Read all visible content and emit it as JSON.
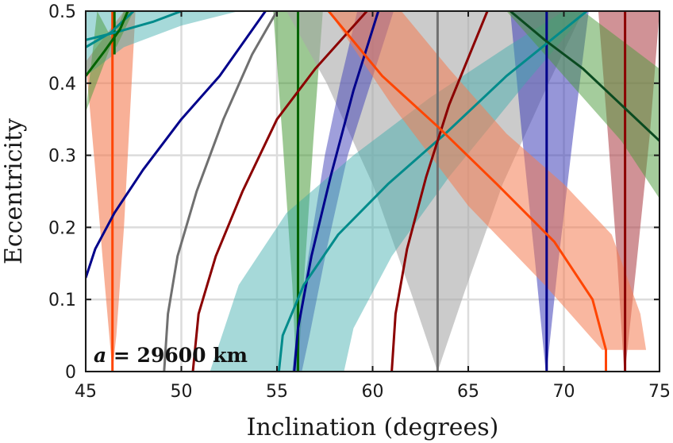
{
  "chart_data": {
    "type": "line",
    "xlabel": "Inclination (degrees)",
    "ylabel": "Eccentricity",
    "xlim": [
      45,
      75
    ],
    "ylim": [
      0,
      0.5
    ],
    "xticks": [
      45,
      50,
      55,
      60,
      65,
      70,
      75
    ],
    "yticks": [
      0,
      0.1,
      0.2,
      0.3,
      0.4,
      0.5
    ],
    "xtick_labels": [
      "45",
      "50",
      "55",
      "60",
      "65",
      "70",
      "75"
    ],
    "ytick_labels": [
      "0",
      "0.1",
      "0.2",
      "0.3",
      "0.4",
      "0.5"
    ],
    "grid": true,
    "annotation": {
      "text": "a = 29600 km",
      "var": "a",
      "rest": " = 29600 km",
      "position": "bottom-left"
    },
    "bands": [
      {
        "name": "band-red-i46",
        "color": "#f47c52",
        "opacity": 0.6,
        "left": [
          [
            45.0,
            0.43
          ],
          [
            45.5,
            0.28
          ],
          [
            46.0,
            0.12
          ],
          [
            46.4,
            0.0
          ]
        ],
        "right": [
          [
            47.0,
            0.5
          ],
          [
            47.6,
            0.5
          ],
          [
            47.0,
            0.2
          ],
          [
            46.6,
            0.05
          ],
          [
            46.4,
            0.0
          ]
        ]
      },
      {
        "name": "band-green-i56",
        "color": "#4a9a3a",
        "opacity": 0.55,
        "left": [
          [
            54.8,
            0.5
          ],
          [
            55.3,
            0.32
          ],
          [
            55.8,
            0.12
          ],
          [
            56.0,
            0.0
          ]
        ],
        "right": [
          [
            57.4,
            0.5
          ],
          [
            56.9,
            0.32
          ],
          [
            56.4,
            0.12
          ],
          [
            56.1,
            0.0
          ]
        ]
      },
      {
        "name": "band-gray-i63",
        "color": "#a8a8a8",
        "opacity": 0.6,
        "left": [
          [
            55.5,
            0.5
          ],
          [
            57.6,
            0.4
          ],
          [
            60.0,
            0.26
          ],
          [
            62.0,
            0.11
          ],
          [
            63.4,
            0.0
          ]
        ],
        "right": [
          [
            71.0,
            0.5
          ],
          [
            69.2,
            0.4
          ],
          [
            66.8,
            0.26
          ],
          [
            64.8,
            0.11
          ],
          [
            63.4,
            0.0
          ]
        ]
      },
      {
        "name": "band-blue-i69",
        "color": "#4040b8",
        "opacity": 0.55,
        "left": [
          [
            67.2,
            0.5
          ],
          [
            67.8,
            0.33
          ],
          [
            68.5,
            0.15
          ],
          [
            69.05,
            0.0
          ]
        ],
        "right": [
          [
            71.3,
            0.5
          ],
          [
            70.5,
            0.33
          ],
          [
            69.7,
            0.15
          ],
          [
            69.1,
            0.0
          ]
        ]
      },
      {
        "name": "band-maroon-i73",
        "color": "#b04a50",
        "opacity": 0.6,
        "left": [
          [
            71.8,
            0.5
          ],
          [
            72.3,
            0.33
          ],
          [
            72.8,
            0.15
          ],
          [
            73.15,
            0.0
          ]
        ],
        "right": [
          [
            75.0,
            0.5
          ],
          [
            74.5,
            0.33
          ],
          [
            73.8,
            0.15
          ],
          [
            73.2,
            0.0
          ]
        ]
      },
      {
        "name": "band-blue-i57",
        "color": "#4040b8",
        "opacity": 0.5,
        "left": [
          [
            55.8,
            0.0
          ],
          [
            56.0,
            0.05
          ],
          [
            56.7,
            0.17
          ],
          [
            57.5,
            0.3
          ],
          [
            58.3,
            0.4
          ],
          [
            59.2,
            0.5
          ]
        ],
        "right": [
          [
            56.3,
            0.0
          ],
          [
            56.7,
            0.05
          ],
          [
            57.6,
            0.17
          ],
          [
            58.7,
            0.3
          ],
          [
            59.9,
            0.4
          ],
          [
            61.1,
            0.5
          ]
        ]
      },
      {
        "name": "band-teal-i55",
        "color": "#3aaaaa",
        "opacity": 0.45,
        "left": [
          [
            51.5,
            0.0
          ],
          [
            53.0,
            0.12
          ],
          [
            55.5,
            0.22
          ],
          [
            59.0,
            0.3
          ],
          [
            63.0,
            0.38
          ],
          [
            67.0,
            0.45
          ],
          [
            70.0,
            0.5
          ]
        ],
        "right": [
          [
            58.5,
            0.0
          ],
          [
            59.0,
            0.06
          ],
          [
            61.0,
            0.16
          ],
          [
            64.0,
            0.27
          ],
          [
            68.0,
            0.4
          ],
          [
            71.2,
            0.5
          ]
        ]
      },
      {
        "name": "band-teal-topleft",
        "color": "#3aaaaa",
        "opacity": 0.45,
        "left": [
          [
            45.0,
            0.41
          ],
          [
            47.0,
            0.45
          ],
          [
            50.0,
            0.48
          ],
          [
            53.0,
            0.5
          ]
        ],
        "right": [
          [
            45.0,
            0.5
          ],
          [
            55.0,
            0.5
          ]
        ]
      },
      {
        "name": "band-red-diagonal",
        "color": "#f47c52",
        "opacity": 0.55,
        "left": [
          [
            57.7,
            0.5
          ],
          [
            61.0,
            0.37
          ],
          [
            65.0,
            0.23
          ],
          [
            69.0,
            0.12
          ],
          [
            72.0,
            0.03
          ],
          [
            73.0,
            0.03
          ]
        ],
        "right": [
          [
            61.5,
            0.5
          ],
          [
            64.0,
            0.42
          ],
          [
            67.0,
            0.33
          ],
          [
            70.0,
            0.26
          ],
          [
            72.5,
            0.19
          ],
          [
            74.0,
            0.08
          ],
          [
            74.3,
            0.03
          ]
        ]
      },
      {
        "name": "band-green-diagonal",
        "color": "#4a9a3a",
        "opacity": 0.5,
        "left": [
          [
            65.5,
            0.5
          ],
          [
            67.0,
            0.5
          ],
          [
            70.0,
            0.41
          ],
          [
            73.0,
            0.32
          ],
          [
            75.0,
            0.24
          ]
        ],
        "right": [
          [
            68.5,
            0.5
          ],
          [
            71.0,
            0.5
          ],
          [
            73.0,
            0.46
          ],
          [
            75.0,
            0.42
          ]
        ]
      },
      {
        "name": "band-green-topleft",
        "color": "#4a9a3a",
        "opacity": 0.5,
        "left": [
          [
            45.0,
            0.36
          ],
          [
            46.0,
            0.43
          ],
          [
            47.0,
            0.5
          ]
        ],
        "right": [
          [
            45.6,
            0.5
          ],
          [
            46.6,
            0.45
          ],
          [
            47.5,
            0.5
          ]
        ]
      }
    ],
    "series": [
      {
        "name": "orange-vertical-46.4",
        "color": "#ff4500",
        "width": 3,
        "points": [
          [
            46.4,
            0.0
          ],
          [
            46.4,
            0.5
          ]
        ]
      },
      {
        "name": "green-vertical-56.1",
        "color": "#006400",
        "width": 3,
        "points": [
          [
            56.1,
            0.0
          ],
          [
            56.1,
            0.5
          ]
        ]
      },
      {
        "name": "gray-vertical-63.4",
        "color": "#707070",
        "width": 3,
        "points": [
          [
            63.4,
            0.0
          ],
          [
            63.4,
            0.5
          ]
        ]
      },
      {
        "name": "blue-vertical-69.1",
        "color": "#00008b",
        "width": 3,
        "points": [
          [
            69.1,
            0.0
          ],
          [
            69.1,
            0.5
          ]
        ]
      },
      {
        "name": "maroon-vertical-73.2",
        "color": "#8b0000",
        "width": 3,
        "points": [
          [
            73.2,
            0.0
          ],
          [
            73.2,
            0.5
          ]
        ]
      },
      {
        "name": "green-vertical-46.5",
        "color": "#006400",
        "width": 3,
        "points": [
          [
            46.5,
            0.44
          ],
          [
            46.5,
            0.5
          ]
        ]
      },
      {
        "name": "blue-curve-45",
        "color": "#00008b",
        "width": 3,
        "points": [
          [
            45.0,
            0.13
          ],
          [
            45.5,
            0.17
          ],
          [
            46.5,
            0.22
          ],
          [
            48.0,
            0.28
          ],
          [
            50.0,
            0.35
          ],
          [
            52.0,
            0.41
          ],
          [
            54.4,
            0.5
          ]
        ]
      },
      {
        "name": "gray-curve-49",
        "color": "#707070",
        "width": 3,
        "points": [
          [
            49.1,
            0.0
          ],
          [
            49.3,
            0.08
          ],
          [
            49.8,
            0.16
          ],
          [
            50.8,
            0.25
          ],
          [
            52.2,
            0.35
          ],
          [
            53.7,
            0.44
          ],
          [
            55.0,
            0.5
          ]
        ]
      },
      {
        "name": "maroon-curve-50.6",
        "color": "#8b0000",
        "width": 3,
        "points": [
          [
            50.6,
            0.0
          ],
          [
            50.9,
            0.08
          ],
          [
            51.8,
            0.16
          ],
          [
            53.2,
            0.25
          ],
          [
            55.0,
            0.35
          ],
          [
            57.0,
            0.42
          ],
          [
            59.7,
            0.5
          ]
        ]
      },
      {
        "name": "blue-curve-55.9",
        "color": "#00008b",
        "width": 3,
        "points": [
          [
            55.9,
            0.0
          ],
          [
            56.1,
            0.06
          ],
          [
            56.8,
            0.16
          ],
          [
            57.8,
            0.27
          ],
          [
            59.0,
            0.39
          ],
          [
            60.3,
            0.5
          ]
        ]
      },
      {
        "name": "teal-curve-55.1",
        "color": "#008b8b",
        "width": 3,
        "points": [
          [
            55.1,
            0.0
          ],
          [
            55.3,
            0.05
          ],
          [
            56.4,
            0.12
          ],
          [
            58.2,
            0.19
          ],
          [
            60.8,
            0.26
          ],
          [
            63.8,
            0.33
          ],
          [
            67.0,
            0.41
          ],
          [
            71.2,
            0.5
          ]
        ]
      },
      {
        "name": "maroon-curve-61",
        "color": "#8b0000",
        "width": 3,
        "points": [
          [
            61.0,
            0.0
          ],
          [
            61.2,
            0.08
          ],
          [
            61.8,
            0.17
          ],
          [
            62.8,
            0.27
          ],
          [
            64.0,
            0.37
          ],
          [
            66.0,
            0.5
          ]
        ]
      },
      {
        "name": "orange-curve-57.7",
        "color": "#ff4500",
        "width": 3,
        "points": [
          [
            57.7,
            0.5
          ],
          [
            60.5,
            0.41
          ],
          [
            63.4,
            0.34
          ],
          [
            66.5,
            0.26
          ],
          [
            69.5,
            0.18
          ],
          [
            71.5,
            0.1
          ],
          [
            72.2,
            0.03
          ],
          [
            72.2,
            0.0
          ]
        ]
      },
      {
        "name": "darkgreen-diagonal",
        "color": "#0a4a20",
        "width": 3,
        "points": [
          [
            67.2,
            0.5
          ],
          [
            69.0,
            0.46
          ],
          [
            71.0,
            0.42
          ],
          [
            73.0,
            0.37
          ],
          [
            75.0,
            0.32
          ]
        ]
      },
      {
        "name": "teal-line-top",
        "color": "#008b8b",
        "width": 3,
        "points": [
          [
            45.0,
            0.46
          ],
          [
            46.5,
            0.47
          ],
          [
            48.5,
            0.485
          ],
          [
            50.0,
            0.5
          ]
        ]
      },
      {
        "name": "teal-line-top-2",
        "color": "#008b8b",
        "width": 3,
        "points": [
          [
            45.0,
            0.45
          ],
          [
            46.3,
            0.47
          ],
          [
            47.5,
            0.5
          ]
        ]
      },
      {
        "name": "green-line-topleft",
        "color": "#006400",
        "width": 3,
        "points": [
          [
            45.0,
            0.41
          ],
          [
            46.0,
            0.445
          ],
          [
            46.8,
            0.475
          ],
          [
            47.2,
            0.5
          ]
        ]
      }
    ]
  }
}
